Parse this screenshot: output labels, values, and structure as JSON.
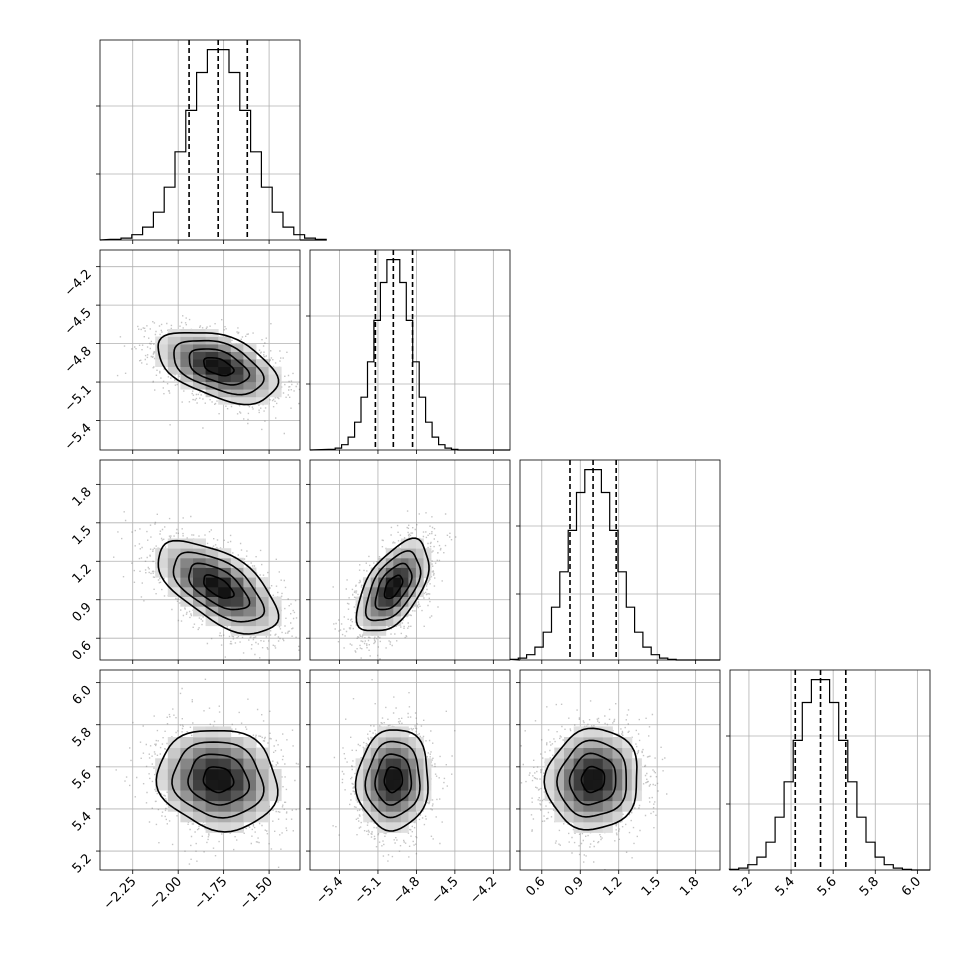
{
  "chart_data": {
    "type": "corner",
    "title": "",
    "parameters": [
      {
        "range": [
          -2.43,
          -1.33
        ],
        "ticks": [
          -2.25,
          -2.0,
          -1.75,
          -1.5
        ],
        "tick_labels": [
          "−2.25",
          "−2.00",
          "−1.75",
          "−1.50"
        ],
        "mean": -1.78,
        "sd": 0.165,
        "q16": -1.94,
        "q50": -1.78,
        "q84": -1.62
      },
      {
        "range": [
          -5.63,
          -4.07
        ],
        "ticks": [
          -5.4,
          -5.1,
          -4.8,
          -4.5,
          -4.2
        ],
        "tick_labels": [
          "−5.4",
          "−5.1",
          "−4.8",
          "−4.5",
          "−4.2"
        ],
        "mean": -4.98,
        "sd": 0.14,
        "q16": -5.12,
        "q50": -4.98,
        "q84": -4.83
      },
      {
        "range": [
          0.43,
          1.99
        ],
        "ticks": [
          0.6,
          0.9,
          1.2,
          1.5,
          1.8
        ],
        "tick_labels": [
          "0.6",
          "0.9",
          "1.2",
          "1.5",
          "1.8"
        ],
        "mean": 1.0,
        "sd": 0.18,
        "q16": 0.82,
        "q50": 1.0,
        "q84": 1.18
      },
      {
        "range": [
          5.11,
          6.06
        ],
        "ticks": [
          5.2,
          5.4,
          5.6,
          5.8,
          6.0
        ],
        "tick_labels": [
          "5.2",
          "5.4",
          "5.6",
          "5.8",
          "6.0"
        ],
        "mean": 5.54,
        "sd": 0.12,
        "q16": 5.42,
        "q50": 5.54,
        "q84": 5.66
      }
    ],
    "correlations": [
      [
        1.0,
        -0.45,
        -0.6,
        -0.1
      ],
      [
        -0.45,
        1.0,
        0.55,
        0.05
      ],
      [
        -0.6,
        0.55,
        1.0,
        0.05
      ],
      [
        -0.1,
        0.05,
        0.05,
        1.0
      ]
    ],
    "histogram_bins": 20,
    "contour_levels_sigma": [
      0.5,
      1.0,
      1.5,
      2.0
    ],
    "grid": true,
    "legend": "none",
    "colors": {
      "line": "#000000",
      "scatter": "#7f7f7f",
      "grid": "#b0b0b0"
    }
  }
}
